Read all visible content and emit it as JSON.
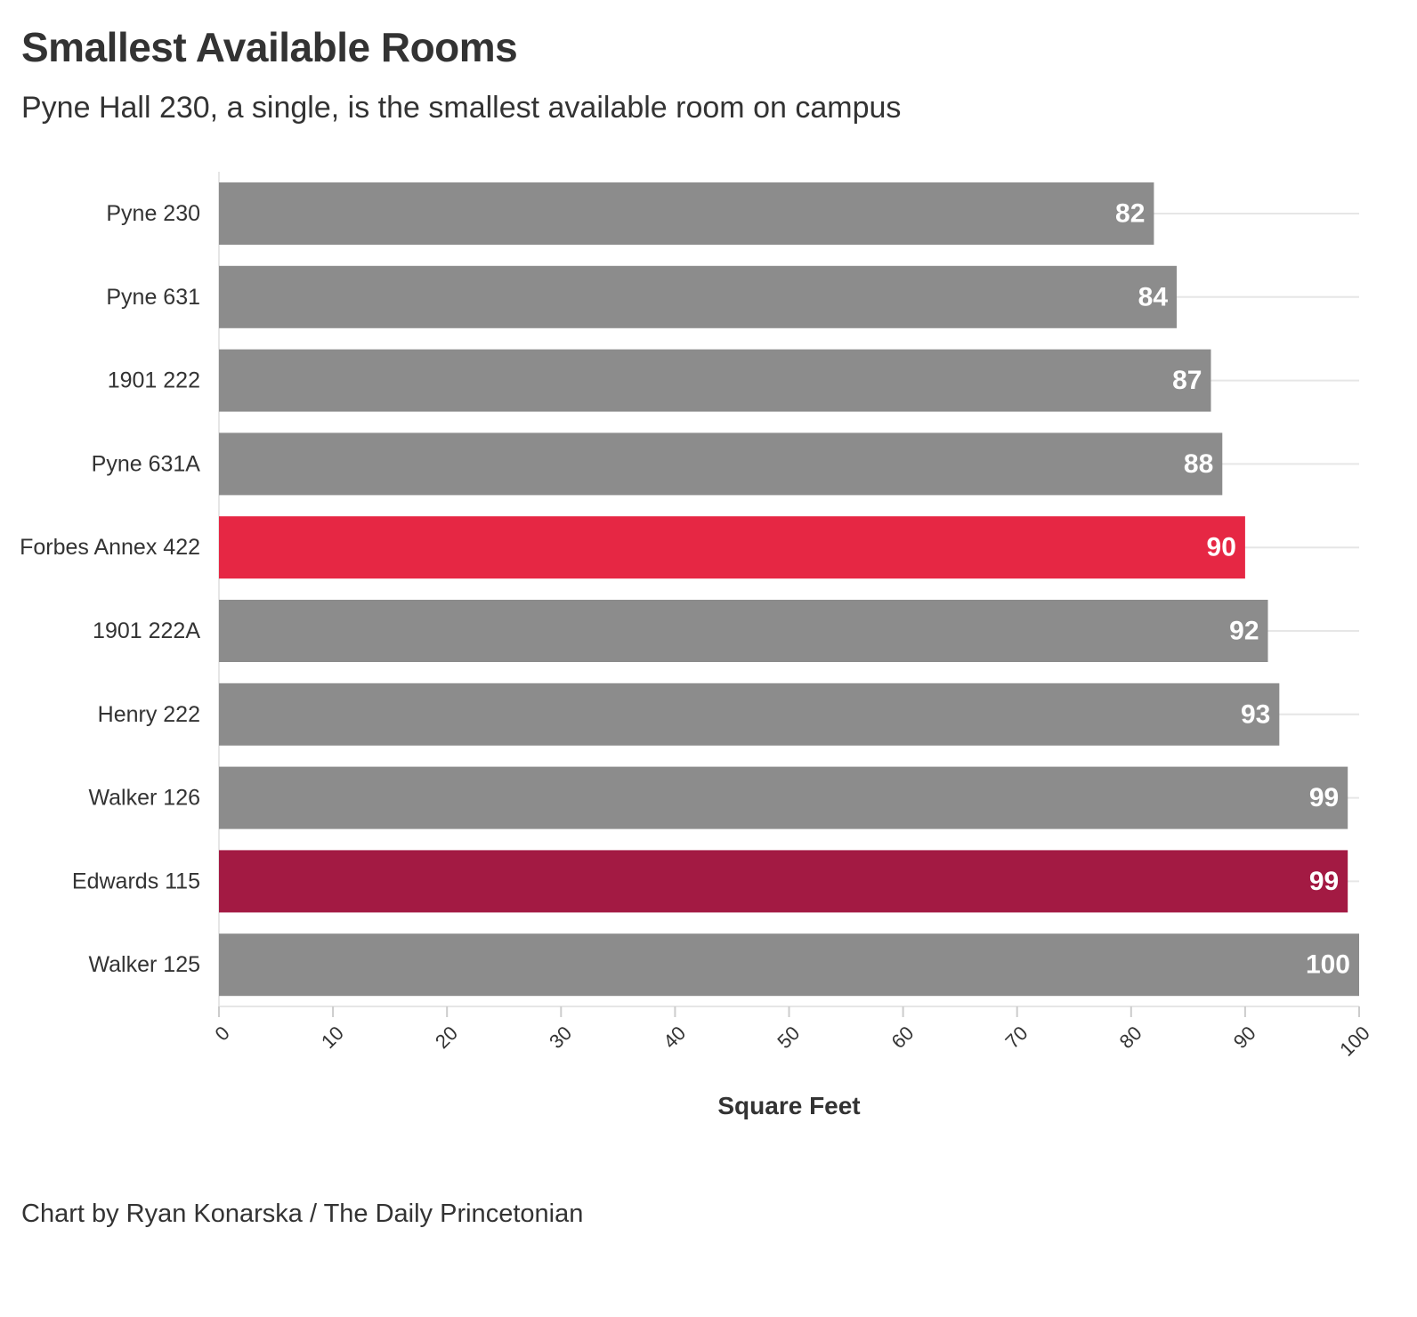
{
  "header": {
    "title": "Smallest Available Rooms",
    "subtitle": "Pyne Hall 230, a single, is the smallest available room on campus"
  },
  "footer": {
    "credit": "Chart by Ryan Konarska / The Daily Princetonian"
  },
  "colors": {
    "default_bar": "#8c8c8c",
    "highlight_red": "#e62744",
    "highlight_crimson": "#a31a43",
    "gridline": "#e6e6e6",
    "text": "#333333",
    "value_label": "#ffffff"
  },
  "chart_data": {
    "type": "bar",
    "orientation": "horizontal",
    "categories": [
      "Pyne 230",
      "Pyne 631",
      "1901 222",
      "Pyne 631A",
      "Forbes Annex 422",
      "1901 222A",
      "Henry 222",
      "Walker 126",
      "Edwards 115",
      "Walker 125"
    ],
    "values": [
      82,
      84,
      87,
      88,
      90,
      92,
      93,
      99,
      99,
      100
    ],
    "value_labels": [
      "82",
      "84",
      "87",
      "88",
      "90",
      "92",
      "93",
      "99",
      "99",
      "100"
    ],
    "bar_colors": [
      "#8c8c8c",
      "#8c8c8c",
      "#8c8c8c",
      "#8c8c8c",
      "#e62744",
      "#8c8c8c",
      "#8c8c8c",
      "#8c8c8c",
      "#a31a43",
      "#8c8c8c"
    ],
    "xlabel": "Square Feet",
    "xlim": [
      0,
      100
    ],
    "xticks": [
      0,
      10,
      20,
      30,
      40,
      50,
      60,
      70,
      80,
      90,
      100
    ],
    "xtick_labels": [
      "0",
      "10",
      "20",
      "30",
      "40",
      "50",
      "60",
      "70",
      "80",
      "90",
      "100"
    ],
    "grid": true,
    "legend": "none"
  }
}
